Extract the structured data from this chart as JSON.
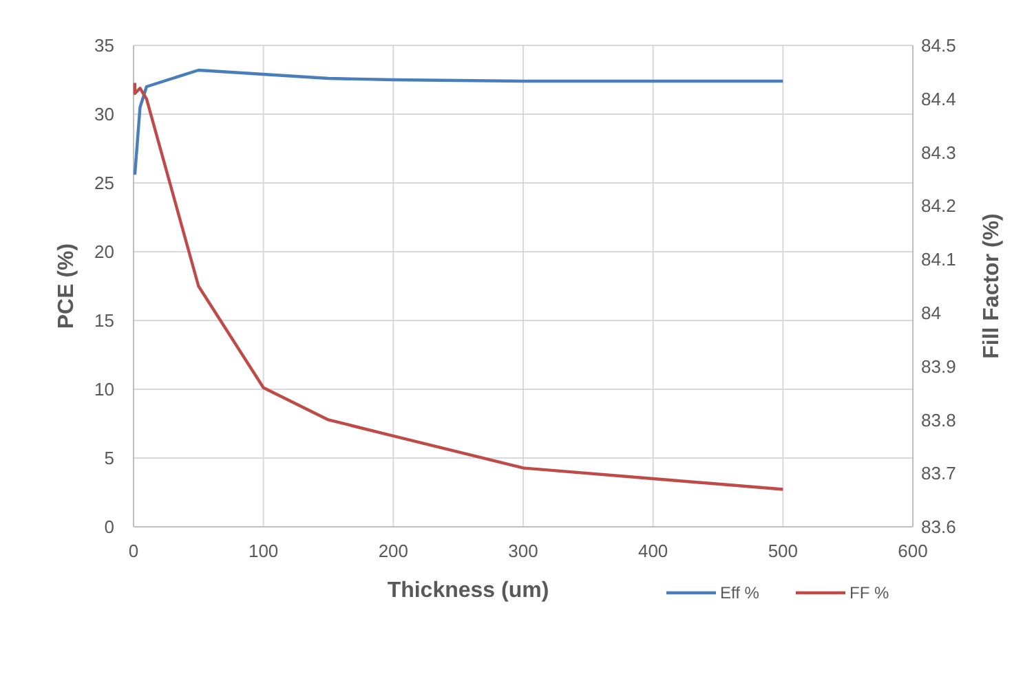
{
  "chart_data": {
    "type": "line",
    "xlabel": "Thickness (um)",
    "ylabel": "PCE (%)",
    "y2label": "Fill Factor (%)",
    "xlim": [
      0,
      600
    ],
    "xticks": [
      0,
      100,
      200,
      300,
      400,
      500,
      600
    ],
    "ylim": [
      0,
      35
    ],
    "yticks": [
      0,
      5,
      10,
      15,
      20,
      25,
      30,
      35
    ],
    "y2lim": [
      83.6,
      84.5
    ],
    "y2ticks": [
      {
        "value": 83.6,
        "label": "83.6"
      },
      {
        "value": 83.7,
        "label": "83.7"
      },
      {
        "value": 83.8,
        "label": "83.8"
      },
      {
        "value": 83.9,
        "label": "83.9"
      },
      {
        "value": 84,
        "label": "84"
      },
      {
        "value": 84.1,
        "label": "84.1"
      },
      {
        "value": 84.2,
        "label": "84.2"
      },
      {
        "value": 84.3,
        "label": "84.3"
      },
      {
        "value": 84.4,
        "label": "84.4"
      },
      {
        "value": 84.5,
        "label": "84.5"
      }
    ],
    "grid": true,
    "legend": "bottom right",
    "marker": "none",
    "line_style": "solid",
    "series": [
      {
        "name": "Eff %",
        "color": "#4a7ebb",
        "x": [
          1,
          5,
          10,
          50,
          100,
          150,
          200,
          300,
          500
        ],
        "values": [
          25.6,
          30.5,
          32.0,
          33.2,
          32.9,
          32.6,
          32.5,
          32.4,
          32.4
        ]
      },
      {
        "name": "FF %",
        "color": "#be4b48",
        "axis": "y2",
        "x": [
          1,
          1,
          5,
          10,
          50,
          100,
          150,
          200,
          300,
          400,
          500
        ],
        "values": [
          84.43,
          84.41,
          84.42,
          84.4,
          84.05,
          83.86,
          83.8,
          83.77,
          83.71,
          83.69,
          83.67
        ]
      }
    ]
  }
}
